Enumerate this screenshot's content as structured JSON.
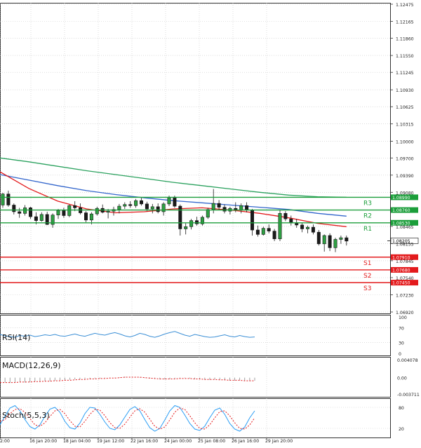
{
  "chart_data": [
    {
      "type": "candlestick",
      "title": "",
      "ylim": [
        1.0692,
        1.12475
      ],
      "price_ticks": [
        "1.12475",
        "1.12165",
        "1.11860",
        "1.11550",
        "1.11245",
        "1.10930",
        "1.10625",
        "1.10315",
        "1.10000",
        "1.09700",
        "1.09390",
        "1.09080",
        "1.08465",
        "1.08155",
        "1.07845",
        "1.07540",
        "1.07230",
        "1.06920"
      ],
      "x_ticks": [
        "2:00",
        "16 Jan 20:00",
        "18 Jan 04:00",
        "19 Jan 12:00",
        "22 Jan 16:00",
        "24 Jan 00:00",
        "25 Jan 08:00",
        "26 Jan 16:00",
        "29 Jan 20:00"
      ],
      "current_price": "1.08205",
      "levels": [
        {
          "label": "R3",
          "value": 1.0899,
          "tag": "1.08990",
          "color": "#1b9e3a"
        },
        {
          "label": "R2",
          "value": 1.0876,
          "tag": "1.08760",
          "color": "#1b9e3a"
        },
        {
          "label": "R1",
          "value": 1.0853,
          "tag": "1.08530",
          "color": "#1b9e3a"
        },
        {
          "label": "S1",
          "value": 1.0791,
          "tag": "1.07910",
          "color": "#e31a1c"
        },
        {
          "label": "S2",
          "value": 1.0768,
          "tag": "1.07680",
          "color": "#e31a1c"
        },
        {
          "label": "S3",
          "value": 1.0745,
          "tag": "1.07450",
          "color": "#e31a1c"
        }
      ],
      "candles": [
        [
          1.0885,
          1.0907,
          1.088,
          1.0905
        ],
        [
          1.0905,
          1.0911,
          1.0882,
          1.0885
        ],
        [
          1.0885,
          1.0888,
          1.0868,
          1.0873
        ],
        [
          1.0873,
          1.088,
          1.0862,
          1.087
        ],
        [
          1.087,
          1.0885,
          1.0866,
          1.088
        ],
        [
          1.088,
          1.0882,
          1.086,
          1.0864
        ],
        [
          1.0864,
          1.0872,
          1.085,
          1.0857
        ],
        [
          1.0857,
          1.0872,
          1.0855,
          1.0868
        ],
        [
          1.0868,
          1.0873,
          1.0849,
          1.085
        ],
        [
          1.085,
          1.087,
          1.0844,
          1.0867
        ],
        [
          1.0867,
          1.0878,
          1.086,
          1.0875
        ],
        [
          1.0875,
          1.088,
          1.0862,
          1.0866
        ],
        [
          1.0866,
          1.0886,
          1.0863,
          1.0884
        ],
        [
          1.0884,
          1.0892,
          1.0874,
          1.088
        ],
        [
          1.088,
          1.0888,
          1.0868,
          1.0871
        ],
        [
          1.0871,
          1.0874,
          1.0854,
          1.0858
        ],
        [
          1.0858,
          1.0872,
          1.085,
          1.0869
        ],
        [
          1.0869,
          1.0882,
          1.0866,
          1.0879
        ],
        [
          1.0879,
          1.0886,
          1.087,
          1.0872
        ],
        [
          1.0872,
          1.0878,
          1.0861,
          1.0874
        ],
        [
          1.0874,
          1.0882,
          1.0866,
          1.0877
        ],
        [
          1.0877,
          1.0887,
          1.087,
          1.0883
        ],
        [
          1.0883,
          1.089,
          1.0878,
          1.0886
        ],
        [
          1.0886,
          1.0892,
          1.088,
          1.0884
        ],
        [
          1.0884,
          1.0896,
          1.088,
          1.0893
        ],
        [
          1.0893,
          1.0898,
          1.0884,
          1.0887
        ],
        [
          1.0887,
          1.0891,
          1.0874,
          1.0878
        ],
        [
          1.0878,
          1.0887,
          1.087,
          1.0882
        ],
        [
          1.0882,
          1.0888,
          1.087,
          1.0873
        ],
        [
          1.0873,
          1.089,
          1.0866,
          1.0887
        ],
        [
          1.0887,
          1.0902,
          1.0883,
          1.0898
        ],
        [
          1.0898,
          1.0902,
          1.088,
          1.0883
        ],
        [
          1.0883,
          1.0886,
          1.083,
          1.0842
        ],
        [
          1.0842,
          1.0852,
          1.0832,
          1.0846
        ],
        [
          1.0846,
          1.086,
          1.0841,
          1.0857
        ],
        [
          1.0857,
          1.0864,
          1.0848,
          1.0851
        ],
        [
          1.0851,
          1.0866,
          1.0848,
          1.0863
        ],
        [
          1.0863,
          1.088,
          1.086,
          1.0877
        ],
        [
          1.0877,
          1.0914,
          1.087,
          1.0888
        ],
        [
          1.0888,
          1.0894,
          1.0876,
          1.0881
        ],
        [
          1.0881,
          1.0886,
          1.087,
          1.0874
        ],
        [
          1.0874,
          1.0882,
          1.0868,
          1.0879
        ],
        [
          1.0879,
          1.089,
          1.0872,
          1.0876
        ],
        [
          1.0876,
          1.0888,
          1.087,
          1.0884
        ],
        [
          1.0884,
          1.089,
          1.0872,
          1.0876
        ],
        [
          1.0876,
          1.0878,
          1.083,
          1.084
        ],
        [
          1.084,
          1.0848,
          1.0828,
          1.0832
        ],
        [
          1.0832,
          1.0846,
          1.083,
          1.0843
        ],
        [
          1.0843,
          1.085,
          1.0834,
          1.0838
        ],
        [
          1.0838,
          1.0842,
          1.082,
          1.0824
        ],
        [
          1.0824,
          1.0876,
          1.082,
          1.087
        ],
        [
          1.087,
          1.0874,
          1.0856,
          1.086
        ],
        [
          1.086,
          1.0866,
          1.0848,
          1.0853
        ],
        [
          1.0853,
          1.086,
          1.0844,
          1.0849
        ],
        [
          1.0849,
          1.0852,
          1.0836,
          1.0842
        ],
        [
          1.0842,
          1.0848,
          1.0834,
          1.0845
        ],
        [
          1.0845,
          1.085,
          1.0832,
          1.0836
        ],
        [
          1.0836,
          1.084,
          1.0812,
          1.0815
        ],
        [
          1.0815,
          1.0832,
          1.0801,
          1.083
        ],
        [
          1.083,
          1.0834,
          1.0802,
          1.0808
        ],
        [
          1.0808,
          1.0826,
          1.08,
          1.0823
        ],
        [
          1.0823,
          1.083,
          1.0815,
          1.0826
        ],
        [
          1.0826,
          1.083,
          1.0812,
          1.082
        ]
      ],
      "ma_series": [
        {
          "color": "#2ca25f",
          "values": [
            1.097,
            1.0963,
            1.0955,
            1.0947,
            1.094,
            1.0933,
            1.0926,
            1.092,
            1.0914,
            1.0908,
            1.0903,
            1.09,
            1.0899
          ]
        },
        {
          "color": "#3366cc",
          "values": [
            1.094,
            1.093,
            1.092,
            1.0911,
            1.0904,
            1.0898,
            1.0893,
            1.0889,
            1.0885,
            1.0881,
            1.0877,
            1.087,
            1.0865
          ]
        },
        {
          "color": "#e31a1c",
          "values": [
            1.0945,
            1.0915,
            1.0892,
            1.0878,
            1.0871,
            1.0873,
            1.0878,
            1.088,
            1.0876,
            1.087,
            1.0862,
            1.0852,
            1.0846
          ]
        }
      ]
    },
    {
      "type": "line",
      "name": "RSI(14)",
      "label": "RSI(14)",
      "ylim": [
        0,
        100
      ],
      "y_ticks": [
        "100",
        "70",
        "30",
        "0"
      ],
      "values": [
        52,
        48,
        46,
        44,
        49,
        47,
        50,
        46,
        48,
        51,
        49,
        52,
        48,
        47,
        50,
        53,
        49,
        47,
        51,
        55,
        52,
        50,
        54,
        57,
        53,
        48,
        45,
        49,
        55,
        52,
        47,
        44,
        48,
        53,
        57,
        60,
        55,
        50,
        47,
        52,
        49,
        46,
        44,
        45,
        48,
        51,
        47,
        45,
        49,
        46,
        44,
        45
      ]
    },
    {
      "type": "bar",
      "name": "MACD(12,26,9)",
      "label": "MACD(12,26,9)",
      "ylim": [
        -0.003711,
        0.004078
      ],
      "y_ticks": [
        "0.004078",
        "0.00",
        "-0.003711"
      ],
      "values": [
        -0.0012,
        -0.0011,
        -0.0012,
        -0.0011,
        -0.001,
        -0.0011,
        -0.001,
        -0.0009,
        -0.0009,
        -0.0008,
        -0.0008,
        -0.0007,
        -0.0006,
        -0.0006,
        -0.0005,
        -0.0004,
        -0.0004,
        -0.0003,
        -0.0003,
        -0.0002,
        -0.0002,
        -0.0001,
        -0.0001,
        -0.0001,
        0.0001,
        0.0002,
        0.0002,
        0.0001,
        0.0001,
        -0.0001,
        -0.0002,
        -0.0003,
        -0.0004,
        -0.0004,
        -0.0003,
        -0.0002,
        -0.0002,
        -0.0001,
        -0.0002,
        -0.0003,
        -0.0004,
        -0.0005,
        -0.0005,
        -0.0004,
        -0.0005,
        -0.0006,
        -0.0007,
        -0.0007,
        -0.0006,
        -0.0007,
        -0.0008,
        -0.0007
      ],
      "signal": [
        -0.0011,
        -0.0011,
        -0.0011,
        -0.0011,
        -0.001,
        -0.001,
        -0.001,
        -0.0009,
        -0.0009,
        -0.0008,
        -0.0008,
        -0.0007,
        -0.0007,
        -0.0006,
        -0.0006,
        -0.0005,
        -0.0004,
        -0.0004,
        -0.0003,
        -0.0003,
        -0.0002,
        -0.0002,
        -0.0001,
        -0.0001,
        -0.0,
        0.0001,
        0.0001,
        0.0001,
        0.0001,
        0.0,
        -0.0001,
        -0.0002,
        -0.0003,
        -0.0003,
        -0.0003,
        -0.0003,
        -0.0002,
        -0.0002,
        -0.0002,
        -0.0003,
        -0.0003,
        -0.0004,
        -0.0004,
        -0.0004,
        -0.0005,
        -0.0005,
        -0.0006,
        -0.0006,
        -0.0006,
        -0.0007,
        -0.0007,
        -0.0007
      ]
    },
    {
      "type": "line",
      "name": "Stoch(5,5,3)",
      "label": "Stoch(5,5,3)",
      "ylim": [
        0,
        100
      ],
      "y_ticks": [
        "80",
        "20"
      ],
      "k": [
        30,
        55,
        78,
        85,
        70,
        45,
        25,
        18,
        30,
        55,
        75,
        80,
        66,
        40,
        22,
        18,
        35,
        62,
        80,
        78,
        60,
        38,
        20,
        16,
        30,
        52,
        74,
        82,
        70,
        45,
        22,
        12,
        20,
        44,
        70,
        85,
        80,
        58,
        34,
        18,
        14,
        26,
        50,
        72,
        78,
        60,
        34,
        18,
        12,
        24,
        50,
        70
      ],
      "d": [
        40,
        45,
        62,
        74,
        76,
        66,
        48,
        30,
        26,
        36,
        54,
        70,
        74,
        62,
        42,
        26,
        24,
        40,
        60,
        74,
        72,
        56,
        36,
        22,
        20,
        32,
        52,
        70,
        76,
        66,
        46,
        26,
        18,
        24,
        44,
        66,
        78,
        74,
        56,
        36,
        20,
        18,
        30,
        50,
        68,
        70,
        56,
        36,
        20,
        18,
        30,
        50
      ]
    }
  ]
}
